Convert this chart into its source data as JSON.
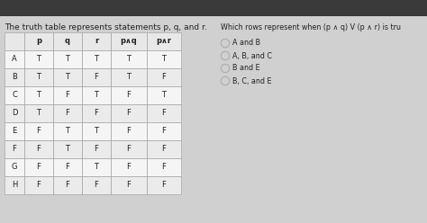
{
  "title": "The truth table represents statements p, q, and r.",
  "question": "Which rows represent when (p ∧ q) V (p ∧ r) is tru",
  "columns": [
    "",
    "p",
    "q",
    "r",
    "p∧q",
    "p∧r"
  ],
  "rows": [
    [
      "A",
      "T",
      "T",
      "T",
      "T",
      "T"
    ],
    [
      "B",
      "T",
      "T",
      "F",
      "T",
      "F"
    ],
    [
      "C",
      "T",
      "F",
      "T",
      "F",
      "T"
    ],
    [
      "D",
      "T",
      "F",
      "F",
      "F",
      "F"
    ],
    [
      "E",
      "F",
      "T",
      "T",
      "F",
      "F"
    ],
    [
      "F",
      "F",
      "T",
      "F",
      "F",
      "F"
    ],
    [
      "G",
      "F",
      "F",
      "T",
      "F",
      "F"
    ],
    [
      "H",
      "F",
      "F",
      "F",
      "F",
      "F"
    ]
  ],
  "choices": [
    "A and B",
    "A, B, and C",
    "B and E",
    "B, C, and E"
  ],
  "selected_choice": -1,
  "bg_color": "#b8b8b8",
  "table_bg": "#ffffff",
  "header_bg": "#e8e8e8",
  "cell_bg": "#f5f5f5",
  "alt_cell_bg": "#ebebeb",
  "border_color": "#999999",
  "text_color": "#222222",
  "title_fontsize": 6.5,
  "table_fontsize": 6.0,
  "choice_fontsize": 5.8,
  "question_fontsize": 5.8,
  "radio_color": "#888888",
  "top_dark": "#3a3a3a"
}
